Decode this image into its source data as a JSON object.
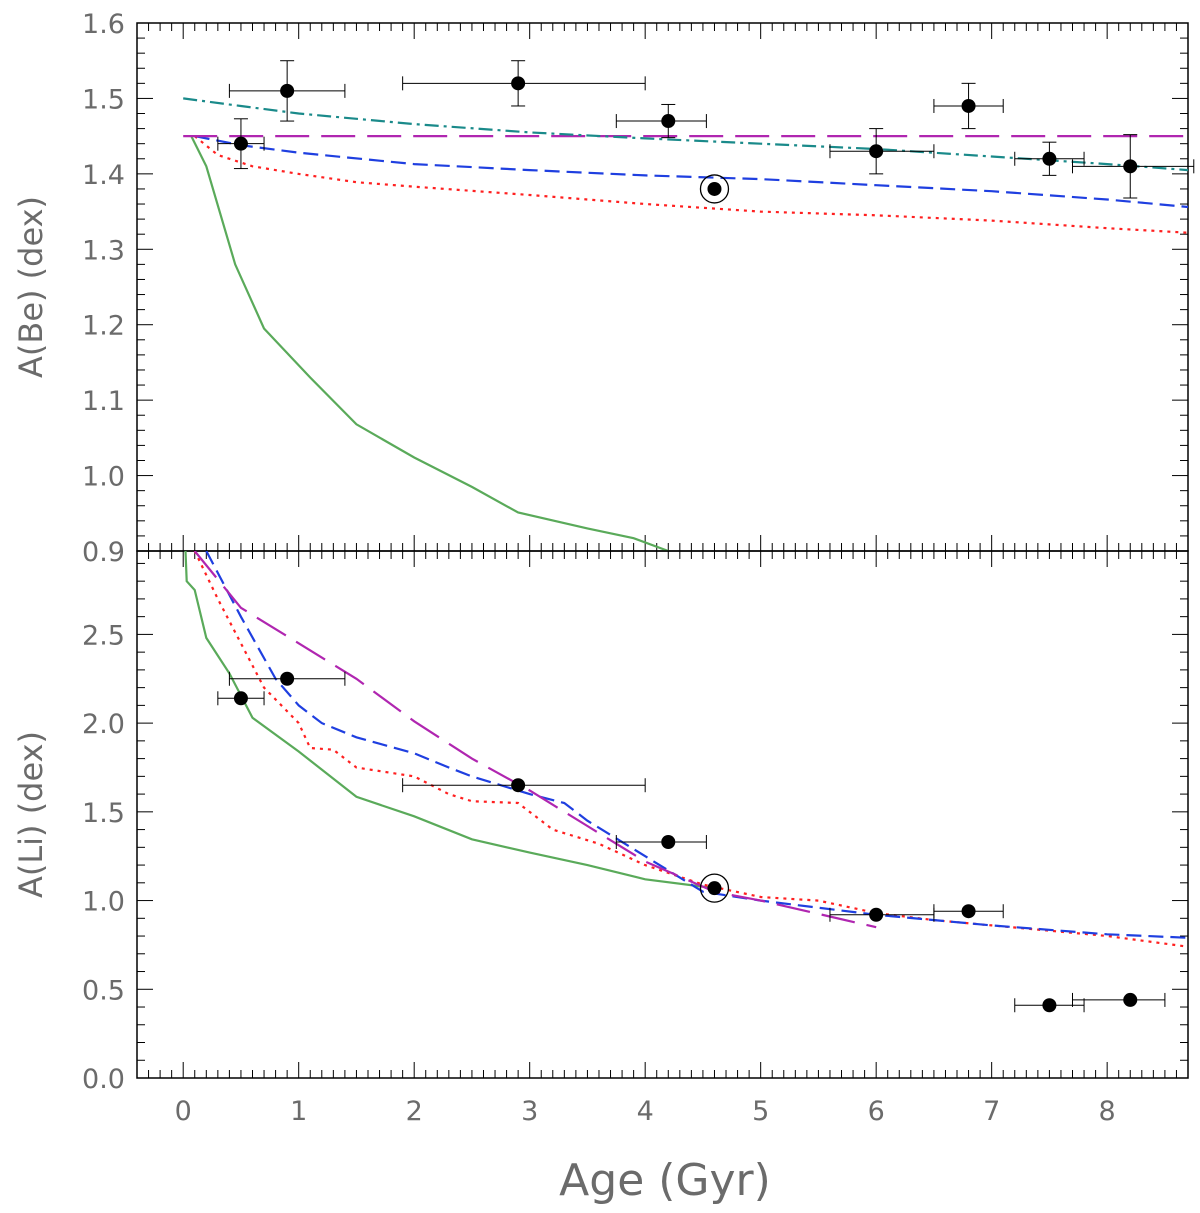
{
  "chart_data": [
    {
      "type": "scatter",
      "panel": "top",
      "ylabel": "A(Be)  (dex)",
      "xlabel": "",
      "xlim": [
        -0.4,
        8.7
      ],
      "ylim": [
        0.9,
        1.6
      ],
      "xticks": [
        0,
        1,
        2,
        3,
        4,
        5,
        6,
        7,
        8
      ],
      "yticks": [
        0.9,
        1.0,
        1.1,
        1.2,
        1.3,
        1.4,
        1.5,
        1.6
      ],
      "ytick_labels": [
        "0.9",
        "1.0",
        "1.1",
        "1.2",
        "1.3",
        "1.4",
        "1.5",
        "1.6"
      ],
      "observations": [
        {
          "x": 0.5,
          "y": 1.44,
          "xerr": [
            0.2,
            0.2
          ],
          "yerr": 0.033
        },
        {
          "x": 0.9,
          "y": 1.51,
          "xerr": [
            0.5,
            0.5
          ],
          "yerr": 0.04
        },
        {
          "x": 2.9,
          "y": 1.52,
          "xerr": [
            1.0,
            1.1
          ],
          "yerr": 0.03
        },
        {
          "x": 4.2,
          "y": 1.47,
          "xerr": [
            0.45,
            0.33
          ],
          "yerr": 0.022
        },
        {
          "x": 6.0,
          "y": 1.43,
          "xerr": [
            0.4,
            0.5
          ],
          "yerr": 0.03
        },
        {
          "x": 6.8,
          "y": 1.49,
          "xerr": [
            0.3,
            0.3
          ],
          "yerr": 0.03
        },
        {
          "x": 7.5,
          "y": 1.42,
          "xerr": [
            0.3,
            0.3
          ],
          "yerr": 0.022
        },
        {
          "x": 8.2,
          "y": 1.41,
          "xerr": [
            0.5,
            0.55
          ],
          "yerr": 0.042
        }
      ],
      "sun": {
        "x": 4.6,
        "y": 1.38
      },
      "series": [
        {
          "style": "solid",
          "color": "#5aaa5a",
          "points": [
            [
              0.07,
              1.45
            ],
            [
              0.2,
              1.41
            ],
            [
              0.45,
              1.28
            ],
            [
              0.7,
              1.195
            ],
            [
              1.1,
              1.13
            ],
            [
              1.5,
              1.068
            ],
            [
              2.0,
              1.024
            ],
            [
              2.5,
              0.985
            ],
            [
              2.9,
              0.951
            ],
            [
              3.5,
              0.93
            ],
            [
              3.9,
              0.917
            ],
            [
              4.2,
              0.9
            ]
          ]
        },
        {
          "style": "dotted",
          "color": "#ff2020",
          "points": [
            [
              0.1,
              1.45
            ],
            [
              0.3,
              1.425
            ],
            [
              0.6,
              1.41
            ],
            [
              1.0,
              1.4
            ],
            [
              1.5,
              1.389
            ],
            [
              2.0,
              1.383
            ],
            [
              3.0,
              1.372
            ],
            [
              4.0,
              1.36
            ],
            [
              5.0,
              1.35
            ],
            [
              6.0,
              1.345
            ],
            [
              7.0,
              1.338
            ],
            [
              8.0,
              1.328
            ],
            [
              8.7,
              1.322
            ]
          ]
        },
        {
          "style": "dashed",
          "color": "#1f3fe0",
          "points": [
            [
              0.1,
              1.45
            ],
            [
              0.5,
              1.438
            ],
            [
              1.0,
              1.428
            ],
            [
              2.0,
              1.413
            ],
            [
              3.0,
              1.405
            ],
            [
              4.0,
              1.398
            ],
            [
              5.0,
              1.393
            ],
            [
              6.0,
              1.385
            ],
            [
              7.0,
              1.377
            ],
            [
              8.0,
              1.366
            ],
            [
              8.7,
              1.356
            ]
          ]
        },
        {
          "style": "longdash",
          "color": "#b026b0",
          "points": [
            [
              0.0,
              1.45
            ],
            [
              8.7,
              1.45
            ]
          ]
        },
        {
          "style": "dashdot",
          "color": "#1a8a8a",
          "points": [
            [
              0.0,
              1.5
            ],
            [
              0.5,
              1.49
            ],
            [
              1.0,
              1.48
            ],
            [
              2.0,
              1.466
            ],
            [
              3.0,
              1.455
            ],
            [
              4.0,
              1.447
            ],
            [
              5.0,
              1.44
            ],
            [
              6.0,
              1.433
            ],
            [
              7.0,
              1.423
            ],
            [
              8.0,
              1.413
            ],
            [
              8.7,
              1.405
            ]
          ]
        }
      ]
    },
    {
      "type": "scatter",
      "panel": "bottom",
      "ylabel": "A(Li)  (dex)",
      "xlabel": "Age  (Gyr)",
      "xlim": [
        -0.4,
        8.7
      ],
      "ylim": [
        0.0,
        2.97
      ],
      "xticks": [
        0,
        1,
        2,
        3,
        4,
        5,
        6,
        7,
        8
      ],
      "xtick_labels": [
        "0",
        "1",
        "2",
        "3",
        "4",
        "5",
        "6",
        "7",
        "8"
      ],
      "yticks": [
        0.0,
        0.5,
        1.0,
        1.5,
        2.0,
        2.5
      ],
      "ytick_labels": [
        "0.0",
        "0.5",
        "1.0",
        "1.5",
        "2.0",
        "2.5"
      ],
      "observations": [
        {
          "x": 0.5,
          "y": 2.14,
          "xerr": [
            0.2,
            0.2
          ],
          "yerr": 0
        },
        {
          "x": 0.9,
          "y": 2.25,
          "xerr": [
            0.5,
            0.5
          ],
          "yerr": 0
        },
        {
          "x": 2.9,
          "y": 1.65,
          "xerr": [
            1.0,
            1.1
          ],
          "yerr": 0
        },
        {
          "x": 4.2,
          "y": 1.33,
          "xerr": [
            0.45,
            0.33
          ],
          "yerr": 0
        },
        {
          "x": 6.0,
          "y": 0.92,
          "xerr": [
            0.4,
            0.5
          ],
          "yerr": 0
        },
        {
          "x": 6.8,
          "y": 0.94,
          "xerr": [
            0.3,
            0.3
          ],
          "yerr": 0
        },
        {
          "x": 7.5,
          "y": 0.41,
          "xerr": [
            0.3,
            0.3
          ],
          "yerr": 0
        },
        {
          "x": 8.2,
          "y": 0.44,
          "xerr": [
            0.5,
            0.3
          ],
          "yerr": 0
        }
      ],
      "sun": {
        "x": 4.6,
        "y": 1.07
      },
      "series": [
        {
          "style": "solid",
          "color": "#5aaa5a",
          "points": [
            [
              0.02,
              2.97
            ],
            [
              0.03,
              2.8
            ],
            [
              0.1,
              2.75
            ],
            [
              0.2,
              2.48
            ],
            [
              0.4,
              2.28
            ],
            [
              0.6,
              2.03
            ],
            [
              1.0,
              1.84
            ],
            [
              1.5,
              1.585
            ],
            [
              2.0,
              1.475
            ],
            [
              2.5,
              1.345
            ],
            [
              3.0,
              1.27
            ],
            [
              3.5,
              1.2
            ],
            [
              4.0,
              1.12
            ],
            [
              4.6,
              1.07
            ]
          ]
        },
        {
          "style": "dotted",
          "color": "#ff2020",
          "points": [
            [
              0.1,
              2.97
            ],
            [
              0.3,
              2.7
            ],
            [
              0.5,
              2.45
            ],
            [
              0.7,
              2.2
            ],
            [
              1.0,
              2.0
            ],
            [
              1.1,
              1.86
            ],
            [
              1.3,
              1.85
            ],
            [
              1.5,
              1.75
            ],
            [
              2.0,
              1.7
            ],
            [
              2.3,
              1.6
            ],
            [
              2.5,
              1.56
            ],
            [
              2.9,
              1.55
            ],
            [
              3.2,
              1.4
            ],
            [
              3.6,
              1.32
            ],
            [
              4.0,
              1.2
            ],
            [
              4.5,
              1.09
            ],
            [
              5.0,
              1.02
            ],
            [
              5.5,
              1.0
            ],
            [
              6.0,
              0.93
            ],
            [
              6.5,
              0.89
            ],
            [
              7.0,
              0.86
            ],
            [
              8.0,
              0.8
            ],
            [
              8.7,
              0.74
            ]
          ]
        },
        {
          "style": "dashed",
          "color": "#1f3fe0",
          "points": [
            [
              0.2,
              2.97
            ],
            [
              0.5,
              2.6
            ],
            [
              0.8,
              2.25
            ],
            [
              1.0,
              2.1
            ],
            [
              1.2,
              2.0
            ],
            [
              1.5,
              1.92
            ],
            [
              2.0,
              1.83
            ],
            [
              2.3,
              1.75
            ],
            [
              2.5,
              1.7
            ],
            [
              3.0,
              1.6
            ],
            [
              3.3,
              1.55
            ],
            [
              3.5,
              1.45
            ],
            [
              4.0,
              1.25
            ],
            [
              4.5,
              1.05
            ],
            [
              5.0,
              1.0
            ],
            [
              6.0,
              0.92
            ],
            [
              7.0,
              0.86
            ],
            [
              8.0,
              0.81
            ],
            [
              8.7,
              0.79
            ]
          ]
        },
        {
          "style": "longdash",
          "color": "#b026b0",
          "points": [
            [
              0.1,
              2.97
            ],
            [
              0.5,
              2.65
            ],
            [
              1.0,
              2.45
            ],
            [
              1.5,
              2.25
            ],
            [
              2.0,
              2.01
            ],
            [
              2.5,
              1.8
            ],
            [
              3.0,
              1.62
            ],
            [
              3.5,
              1.42
            ],
            [
              4.0,
              1.22
            ],
            [
              4.6,
              1.05
            ],
            [
              5.0,
              1.0
            ],
            [
              6.0,
              0.85
            ]
          ]
        }
      ]
    }
  ]
}
